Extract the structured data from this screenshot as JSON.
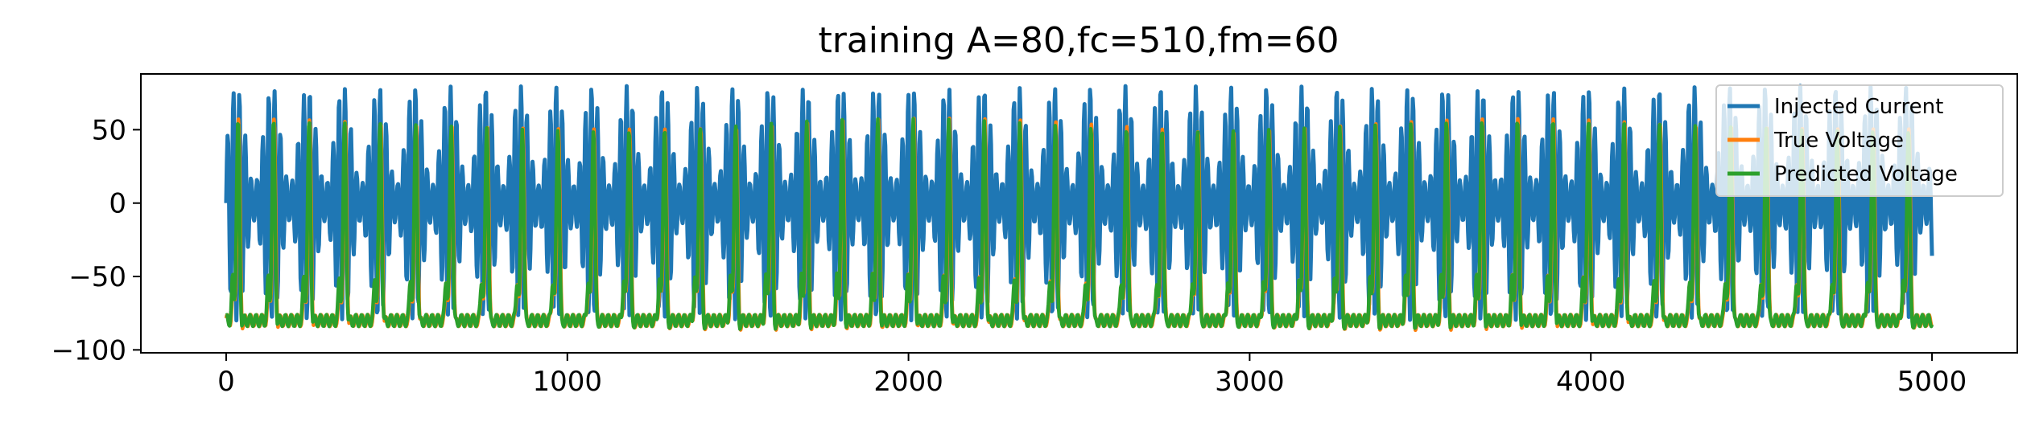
{
  "chart_data": {
    "type": "line",
    "title": "training A=80,fc=510,fm=60",
    "xlabel": "",
    "ylabel": "",
    "xlim": [
      -250,
      5250
    ],
    "ylim": [
      -102,
      88
    ],
    "x_ticks": [
      0,
      1000,
      2000,
      3000,
      4000,
      5000
    ],
    "y_ticks": [
      -100,
      -50,
      0,
      50
    ],
    "legend_placement": "top-right",
    "grid": false,
    "x_range": [
      0,
      5000
    ],
    "series": [
      {
        "name": "Injected Current",
        "color": "#1f77b4",
        "shape": "amplitude-modulated oscillation, carrier period ~17 samples, modulation period ~104 samples",
        "amplitude": 80,
        "peak_max": 80,
        "trough_min": -80
      },
      {
        "name": "True Voltage",
        "color": "#ff7f0e",
        "shape": "spiking trace, one spike per modulation cycle",
        "spike_count": 48,
        "baseline": -80,
        "spike_peak": 55,
        "trough_min": -92
      },
      {
        "name": "Predicted Voltage",
        "color": "#2ca02c",
        "shape": "spiking trace closely tracking true voltage",
        "spike_count": 48,
        "baseline": -80,
        "spike_peak": 54,
        "trough_min": -90
      }
    ]
  }
}
